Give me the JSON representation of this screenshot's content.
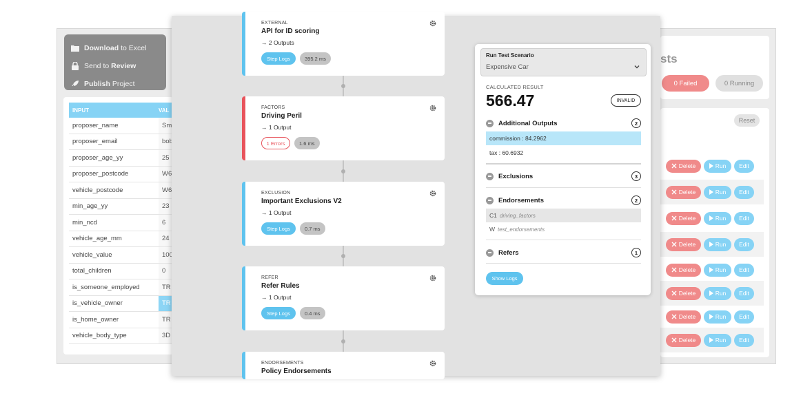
{
  "menu": {
    "items": [
      {
        "bold": "Download",
        "rest": " to Excel",
        "bold_first": true
      },
      {
        "pre": "Send to ",
        "bold": "Review",
        "bold_first": false
      },
      {
        "bold": "Publish",
        "rest": " Project",
        "bold_first": true
      }
    ]
  },
  "inputs_table": {
    "col_input": "INPUT",
    "col_value": "VAL",
    "rows": [
      {
        "key": "proposer_name",
        "value": "Sm"
      },
      {
        "key": "proposer_email",
        "value": "bob"
      },
      {
        "key": "proposer_age_yy",
        "value": "25"
      },
      {
        "key": "proposer_postcode",
        "value": "W6"
      },
      {
        "key": "vehicle_postcode",
        "value": "W6"
      },
      {
        "key": "min_age_yy",
        "value": "23"
      },
      {
        "key": "min_ncd",
        "value": "6"
      },
      {
        "key": "vehicle_age_mm",
        "value": "24"
      },
      {
        "key": "vehicle_value",
        "value": "100"
      },
      {
        "key": "total_children",
        "value": "0"
      },
      {
        "key": "is_someone_employed",
        "value": "TR"
      },
      {
        "key": "is_vehicle_owner",
        "value": "TR"
      },
      {
        "key": "is_home_owner",
        "value": "TR"
      },
      {
        "key": "vehicle_body_type",
        "value": "3D"
      }
    ]
  },
  "tests_panel": {
    "title_fragment": "sts",
    "failed": "0 Failed",
    "running": "0 Running",
    "reset": "Reset",
    "delete_label": "Delete",
    "run_label": "Run",
    "edit_label": "Edit"
  },
  "flow": {
    "cards": [
      {
        "category": "EXTERNAL",
        "title": "API for ID scoring",
        "outputs": "→ 2 Outputs",
        "button": "Step Logs",
        "time": "395.2 ms",
        "error": false
      },
      {
        "category": "FACTORS",
        "title": "Driving Peril",
        "outputs": "→ 1 Output",
        "button": "1 Errors",
        "time": "1.6 ms",
        "error": true
      },
      {
        "category": "EXCLUSION",
        "title": "Important Exclusions V2",
        "outputs": "→ 1 Output",
        "button": "Step Logs",
        "time": "0.7 ms",
        "error": false
      },
      {
        "category": "REFER",
        "title": "Refer Rules",
        "outputs": "→ 1 Output",
        "button": "Step Logs",
        "time": "0.4 ms",
        "error": false
      },
      {
        "category": "ENDORSEMENTS",
        "title": "Policy Endorsements",
        "outputs": "",
        "button": "",
        "time": "",
        "error": false
      }
    ]
  },
  "scenario": {
    "label": "Run Test Scenario",
    "selected": "Expensive Car",
    "calc_label": "CALCULATED RESULT",
    "calc_value": "566.47",
    "badge": "INVALID",
    "additional_outputs": {
      "title": "Additional Outputs",
      "count": "2",
      "items": [
        "commission : 84.2962",
        "tax : 60.6932"
      ]
    },
    "exclusions": {
      "title": "Exclusions",
      "count": "3"
    },
    "endorsements": {
      "title": "Endorsements",
      "count": "2",
      "items": [
        {
          "code": "C1",
          "name": "driving_factors"
        },
        {
          "code": "W",
          "name": "test_endorsements"
        }
      ]
    },
    "refers": {
      "title": "Refers",
      "count": "1"
    },
    "show_logs": "Show Logs"
  },
  "colors": {
    "accent": "#5fc3ee",
    "error": "#e8545c",
    "danger": "#f08a8a"
  }
}
